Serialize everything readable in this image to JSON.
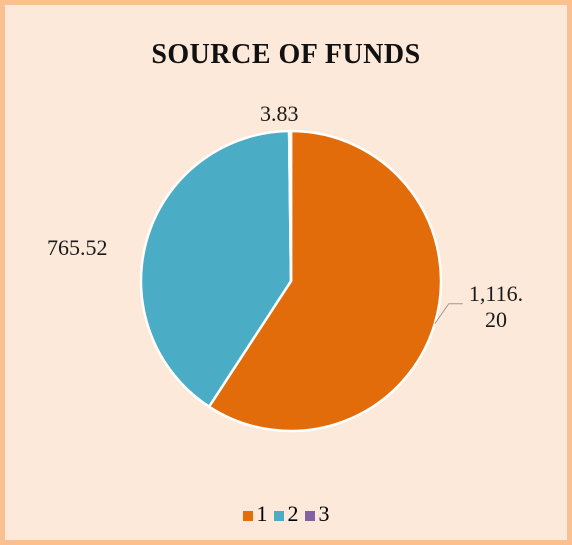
{
  "chart_data": {
    "type": "pie",
    "title": "SOURCE OF FUNDS",
    "categories": [
      "1",
      "2",
      "3"
    ],
    "values": [
      1116.2,
      765.52,
      3.83
    ],
    "value_labels": [
      "1,116.20",
      "765.52",
      "3.83"
    ],
    "colors": [
      "#E36C0A",
      "#4BACC6",
      "#8064A2"
    ],
    "legend": "bottom"
  }
}
